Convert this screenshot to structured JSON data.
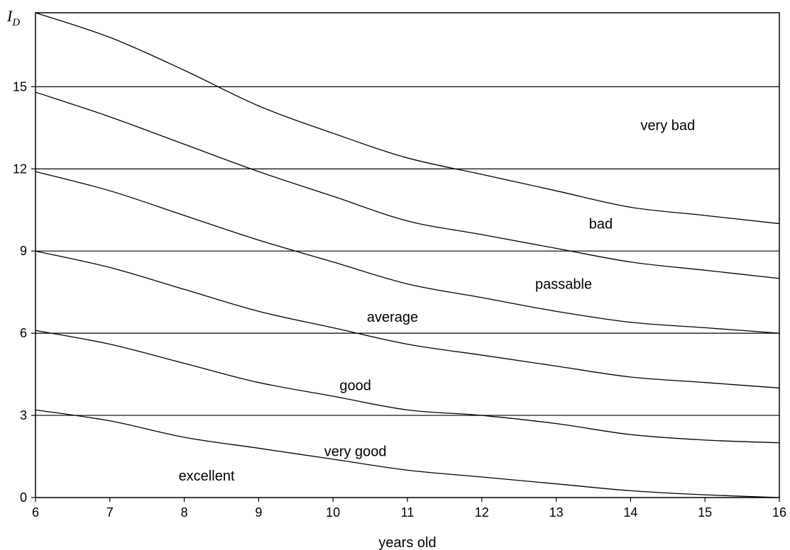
{
  "chart_data": {
    "type": "line",
    "xlabel": "years old",
    "ylabel": "I",
    "ylabel_sub": "D",
    "xlim": [
      6,
      16
    ],
    "ylim": [
      0,
      17.7
    ],
    "x_ticks": [
      6,
      7,
      8,
      9,
      10,
      11,
      12,
      13,
      14,
      15,
      16
    ],
    "y_ticks": [
      0,
      3,
      6,
      9,
      12,
      15
    ],
    "grid": "horizontal lines at y ticks",
    "legend": "none",
    "series": [
      {
        "x": [
          6,
          7,
          8,
          9,
          10,
          11,
          12,
          13,
          14,
          15,
          16
        ],
        "y": [
          17.7,
          16.8,
          15.6,
          14.3,
          13.3,
          12.4,
          11.8,
          11.2,
          10.6,
          10.3,
          10.0
        ]
      },
      {
        "x": [
          6,
          7,
          8,
          9,
          10,
          11,
          12,
          13,
          14,
          15,
          16
        ],
        "y": [
          14.8,
          13.9,
          12.9,
          11.9,
          11.0,
          10.1,
          9.6,
          9.1,
          8.6,
          8.3,
          8.0
        ]
      },
      {
        "x": [
          6,
          7,
          8,
          9,
          10,
          11,
          12,
          13,
          14,
          15,
          16
        ],
        "y": [
          11.9,
          11.2,
          10.3,
          9.4,
          8.6,
          7.8,
          7.3,
          6.8,
          6.4,
          6.2,
          6.0
        ]
      },
      {
        "x": [
          6,
          7,
          8,
          9,
          10,
          11,
          12,
          13,
          14,
          15,
          16
        ],
        "y": [
          9.0,
          8.4,
          7.6,
          6.8,
          6.2,
          5.6,
          5.2,
          4.8,
          4.4,
          4.2,
          4.0
        ]
      },
      {
        "x": [
          6,
          7,
          8,
          9,
          10,
          11,
          12,
          13,
          14,
          15,
          16
        ],
        "y": [
          6.1,
          5.6,
          4.9,
          4.2,
          3.7,
          3.2,
          3.0,
          2.7,
          2.3,
          2.1,
          2.0
        ]
      },
      {
        "x": [
          6,
          7,
          8,
          9,
          10,
          11,
          12,
          13,
          14,
          15,
          16
        ],
        "y": [
          3.2,
          2.8,
          2.2,
          1.8,
          1.4,
          1.0,
          0.75,
          0.5,
          0.25,
          0.1,
          0.0
        ]
      }
    ],
    "annotations": [
      {
        "text": "very bad",
        "x": 14.5,
        "y": 13.6
      },
      {
        "text": "bad",
        "x": 13.6,
        "y": 10.0
      },
      {
        "text": "passable",
        "x": 13.1,
        "y": 7.8
      },
      {
        "text": "average",
        "x": 10.8,
        "y": 6.6
      },
      {
        "text": "good",
        "x": 10.3,
        "y": 4.1
      },
      {
        "text": "very good",
        "x": 10.3,
        "y": 1.7
      },
      {
        "text": "excellent",
        "x": 8.3,
        "y": 0.8
      }
    ]
  }
}
